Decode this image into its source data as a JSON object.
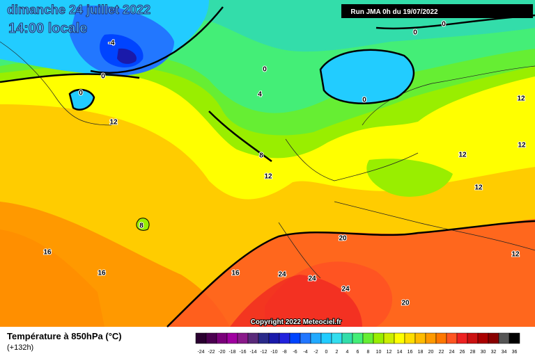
{
  "header": {
    "date": "dimanche 24 juillet 2022",
    "time": "14:00 locale",
    "run": "Run JMA 0h du 19/07/2022"
  },
  "copyright": "Copyright 2022 Meteociel.fr",
  "legend": {
    "title": "Température à 850hPa (°C)",
    "lead": "(+132h)",
    "ticks": [
      -24,
      -22,
      -20,
      -18,
      -16,
      -14,
      -12,
      -10,
      -8,
      -6,
      -4,
      -2,
      0,
      2,
      4,
      6,
      8,
      10,
      12,
      14,
      16,
      18,
      20,
      22,
      24,
      26,
      28,
      30,
      32,
      34,
      36
    ],
    "colors": [
      "#2a0030",
      "#4b0050",
      "#7a007a",
      "#a000a0",
      "#8a1a8a",
      "#5a2a7a",
      "#2a2a8a",
      "#1a1aaa",
      "#2222dd",
      "#0044ff",
      "#2277ff",
      "#22aaff",
      "#22ccff",
      "#33ddee",
      "#33ddaa",
      "#44ee77",
      "#66ee33",
      "#99ee00",
      "#ccee00",
      "#ffff00",
      "#ffdd00",
      "#ffbb00",
      "#ff9900",
      "#ff7700",
      "#ff5522",
      "#ee2222",
      "#cc1111",
      "#aa0000",
      "#880000",
      "#555555",
      "#000000"
    ]
  },
  "contour_labels": [
    -4,
    0,
    0,
    0,
    0,
    0,
    0,
    4,
    8,
    8,
    12,
    12,
    12,
    12,
    12,
    12,
    12,
    16,
    16,
    16,
    20,
    20,
    24,
    24,
    24
  ]
}
